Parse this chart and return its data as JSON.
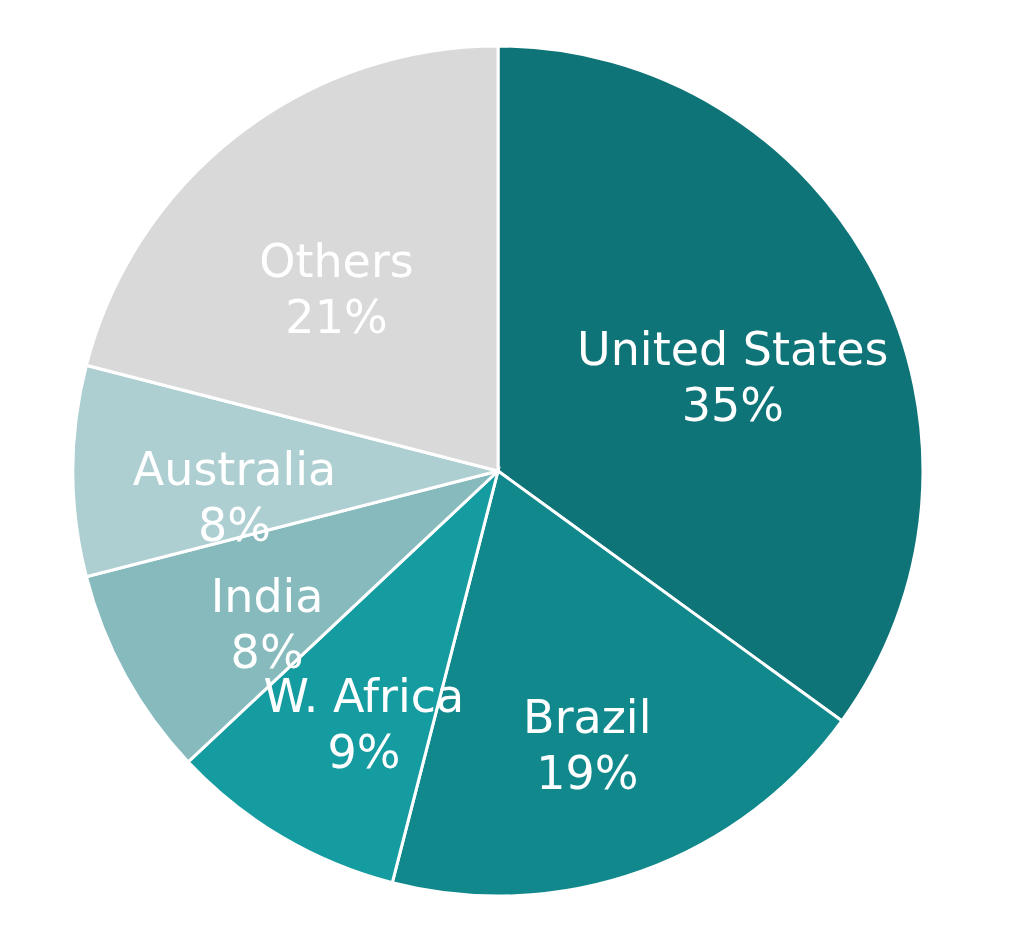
{
  "chart_data": {
    "type": "pie",
    "categories": [
      "United States",
      "Brazil",
      "W. Africa",
      "India",
      "Australia",
      "Others"
    ],
    "values": [
      35,
      19,
      9,
      8,
      8,
      21
    ],
    "value_labels": [
      "35%",
      "19%",
      "9%",
      "8%",
      "8%",
      "21%"
    ],
    "colors": [
      "#0e7477",
      "#11898c",
      "#149ca0",
      "#86babd",
      "#aecfd2",
      "#d9d9d9"
    ],
    "legend": false
  }
}
